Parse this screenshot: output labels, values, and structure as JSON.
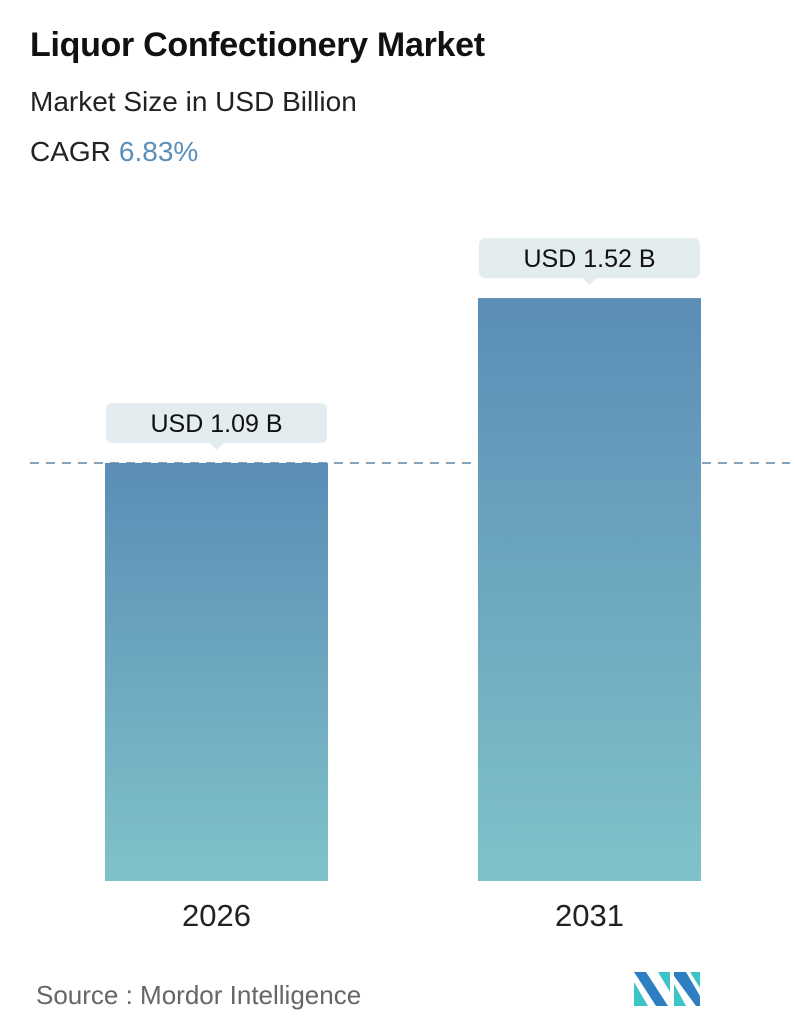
{
  "header": {
    "title": "Liquor Confectionery Market",
    "subtitle": "Market Size in USD Billion",
    "cagr_label": "CAGR",
    "cagr_value": "6.83%"
  },
  "chart_data": {
    "type": "bar",
    "categories": [
      "2026",
      "2031"
    ],
    "values": [
      1.09,
      1.52
    ],
    "data_labels": [
      "USD 1.09 B",
      "USD 1.52 B"
    ],
    "unit": "USD Billion",
    "reference_line": 1.09,
    "grid": false,
    "colors": {
      "bar_top": "#5b8db6",
      "bar_bottom": "#80c2c9",
      "label_bg": "#e3ecee",
      "dash": "#5b85a8"
    }
  },
  "footer": {
    "source": "Source :  Mordor Intelligence",
    "logo_text": "MI"
  }
}
